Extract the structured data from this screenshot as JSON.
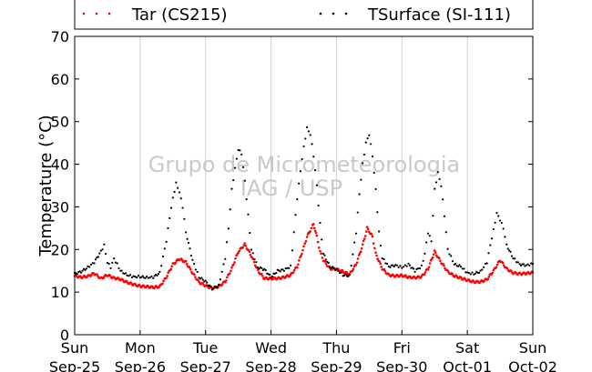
{
  "chart_data": {
    "type": "scatter",
    "title": "",
    "xlabel": "",
    "ylabel": "Temperature (°C)",
    "ylim": [
      0,
      70
    ],
    "yticks": [
      0,
      10,
      20,
      30,
      40,
      50,
      60,
      70
    ],
    "x_unit": "day",
    "xlim": [
      0,
      7
    ],
    "xtick_labels": [
      [
        "Sun",
        "Sep-25"
      ],
      [
        "Mon",
        "Sep-26"
      ],
      [
        "Tue",
        "Sep-27"
      ],
      [
        "Wed",
        "Sep-28"
      ],
      [
        "Thu",
        "Sep-29"
      ],
      [
        "Fri",
        "Sep-30"
      ],
      [
        "Sat",
        "Oct-01"
      ],
      [
        "Sun",
        "Oct-02"
      ]
    ],
    "grid": "vertical",
    "legend_position": "top",
    "watermark": [
      "Grupo de Micrometeorologia",
      "IAG / USP"
    ],
    "series": [
      {
        "name": "Tar (CS215)",
        "color": "#ff0000",
        "marker": "dot",
        "points": [
          [
            0.0,
            13.8
          ],
          [
            0.1,
            13.5
          ],
          [
            0.2,
            13.7
          ],
          [
            0.3,
            14.4
          ],
          [
            0.4,
            13.2
          ],
          [
            0.5,
            14.0
          ],
          [
            0.6,
            13.3
          ],
          [
            0.7,
            13.0
          ],
          [
            0.8,
            12.3
          ],
          [
            0.9,
            11.8
          ],
          [
            1.0,
            11.4
          ],
          [
            1.1,
            11.3
          ],
          [
            1.2,
            11.1
          ],
          [
            1.3,
            11.3
          ],
          [
            1.4,
            13.5
          ],
          [
            1.5,
            16.5
          ],
          [
            1.6,
            17.8
          ],
          [
            1.7,
            17.0
          ],
          [
            1.8,
            14.5
          ],
          [
            1.9,
            12.3
          ],
          [
            2.0,
            11.5
          ],
          [
            2.1,
            10.9
          ],
          [
            2.2,
            11.3
          ],
          [
            2.3,
            12.5
          ],
          [
            2.4,
            15.5
          ],
          [
            2.5,
            19.5
          ],
          [
            2.6,
            21.2
          ],
          [
            2.7,
            18.5
          ],
          [
            2.8,
            15.0
          ],
          [
            2.9,
            13.2
          ],
          [
            3.0,
            13.2
          ],
          [
            3.1,
            13.2
          ],
          [
            3.2,
            13.5
          ],
          [
            3.3,
            14.0
          ],
          [
            3.4,
            16.0
          ],
          [
            3.5,
            20.5
          ],
          [
            3.55,
            23.0
          ],
          [
            3.6,
            24.5
          ],
          [
            3.65,
            26.0
          ],
          [
            3.7,
            23.0
          ],
          [
            3.75,
            19.5
          ],
          [
            3.8,
            17.5
          ],
          [
            3.9,
            15.5
          ],
          [
            4.0,
            15.4
          ],
          [
            4.1,
            14.8
          ],
          [
            4.2,
            14.2
          ],
          [
            4.3,
            16.5
          ],
          [
            4.4,
            21.0
          ],
          [
            4.47,
            25.0
          ],
          [
            4.55,
            23.0
          ],
          [
            4.6,
            19.0
          ],
          [
            4.7,
            15.5
          ],
          [
            4.8,
            14.0
          ],
          [
            4.9,
            13.8
          ],
          [
            5.0,
            13.9
          ],
          [
            5.1,
            13.5
          ],
          [
            5.2,
            13.4
          ],
          [
            5.3,
            13.6
          ],
          [
            5.4,
            15.5
          ],
          [
            5.5,
            19.5
          ],
          [
            5.6,
            17.0
          ],
          [
            5.7,
            14.8
          ],
          [
            5.8,
            13.8
          ],
          [
            5.9,
            13.3
          ],
          [
            6.0,
            12.8
          ],
          [
            6.1,
            12.4
          ],
          [
            6.2,
            12.4
          ],
          [
            6.3,
            13.0
          ],
          [
            6.4,
            15.0
          ],
          [
            6.5,
            17.5
          ],
          [
            6.6,
            15.5
          ],
          [
            6.7,
            14.5
          ],
          [
            6.8,
            14.3
          ],
          [
            6.9,
            14.4
          ],
          [
            7.0,
            14.6
          ]
        ]
      },
      {
        "name": "TSurface (SI-111)",
        "color": "#000000",
        "marker": "dot",
        "points": [
          [
            0.0,
            14.3
          ],
          [
            0.1,
            14.8
          ],
          [
            0.2,
            15.8
          ],
          [
            0.3,
            17.0
          ],
          [
            0.4,
            19.5
          ],
          [
            0.45,
            21.0
          ],
          [
            0.5,
            17.0
          ],
          [
            0.55,
            15.8
          ],
          [
            0.6,
            17.8
          ],
          [
            0.65,
            16.5
          ],
          [
            0.7,
            15.0
          ],
          [
            0.8,
            14.0
          ],
          [
            0.9,
            13.6
          ],
          [
            1.0,
            13.6
          ],
          [
            1.1,
            13.4
          ],
          [
            1.2,
            13.5
          ],
          [
            1.3,
            14.5
          ],
          [
            1.4,
            22.0
          ],
          [
            1.45,
            27.5
          ],
          [
            1.5,
            32.0
          ],
          [
            1.55,
            35.5
          ],
          [
            1.6,
            33.5
          ],
          [
            1.65,
            30.0
          ],
          [
            1.7,
            24.0
          ],
          [
            1.8,
            17.5
          ],
          [
            1.9,
            13.5
          ],
          [
            2.0,
            12.5
          ],
          [
            2.1,
            10.8
          ],
          [
            2.2,
            11.5
          ],
          [
            2.3,
            18.0
          ],
          [
            2.35,
            25.0
          ],
          [
            2.4,
            34.0
          ],
          [
            2.45,
            39.0
          ],
          [
            2.5,
            43.5
          ],
          [
            2.55,
            42.5
          ],
          [
            2.6,
            36.0
          ],
          [
            2.65,
            28.0
          ],
          [
            2.7,
            20.0
          ],
          [
            2.8,
            15.8
          ],
          [
            2.9,
            15.3
          ],
          [
            3.0,
            13.5
          ],
          [
            3.1,
            15.0
          ],
          [
            3.2,
            15.2
          ],
          [
            3.3,
            16.0
          ],
          [
            3.35,
            24.0
          ],
          [
            3.4,
            32.0
          ],
          [
            3.45,
            38.5
          ],
          [
            3.5,
            44.0
          ],
          [
            3.55,
            48.5
          ],
          [
            3.6,
            47.0
          ],
          [
            3.65,
            42.0
          ],
          [
            3.7,
            35.0
          ],
          [
            3.75,
            26.0
          ],
          [
            3.8,
            19.0
          ],
          [
            3.9,
            16.0
          ],
          [
            4.0,
            15.3
          ],
          [
            4.1,
            14.0
          ],
          [
            4.2,
            13.8
          ],
          [
            4.3,
            24.0
          ],
          [
            4.35,
            33.0
          ],
          [
            4.4,
            40.0
          ],
          [
            4.45,
            45.0
          ],
          [
            4.5,
            47.0
          ],
          [
            4.55,
            42.0
          ],
          [
            4.6,
            34.0
          ],
          [
            4.65,
            24.0
          ],
          [
            4.7,
            18.0
          ],
          [
            4.8,
            16.0
          ],
          [
            4.9,
            16.3
          ],
          [
            5.0,
            15.8
          ],
          [
            5.1,
            16.5
          ],
          [
            5.2,
            15.0
          ],
          [
            5.3,
            16.0
          ],
          [
            5.35,
            19.0
          ],
          [
            5.4,
            24.0
          ],
          [
            5.45,
            22.0
          ],
          [
            5.5,
            34.0
          ],
          [
            5.55,
            38.0
          ],
          [
            5.6,
            35.0
          ],
          [
            5.65,
            28.0
          ],
          [
            5.7,
            20.0
          ],
          [
            5.8,
            16.5
          ],
          [
            5.9,
            16.0
          ],
          [
            6.0,
            14.5
          ],
          [
            6.1,
            14.3
          ],
          [
            6.2,
            14.8
          ],
          [
            6.3,
            17.0
          ],
          [
            6.35,
            21.0
          ],
          [
            6.4,
            24.5
          ],
          [
            6.45,
            28.5
          ],
          [
            6.5,
            27.0
          ],
          [
            6.55,
            25.0
          ],
          [
            6.6,
            21.0
          ],
          [
            6.7,
            18.0
          ],
          [
            6.8,
            16.5
          ],
          [
            6.9,
            16.3
          ],
          [
            7.0,
            16.6
          ]
        ]
      }
    ]
  }
}
